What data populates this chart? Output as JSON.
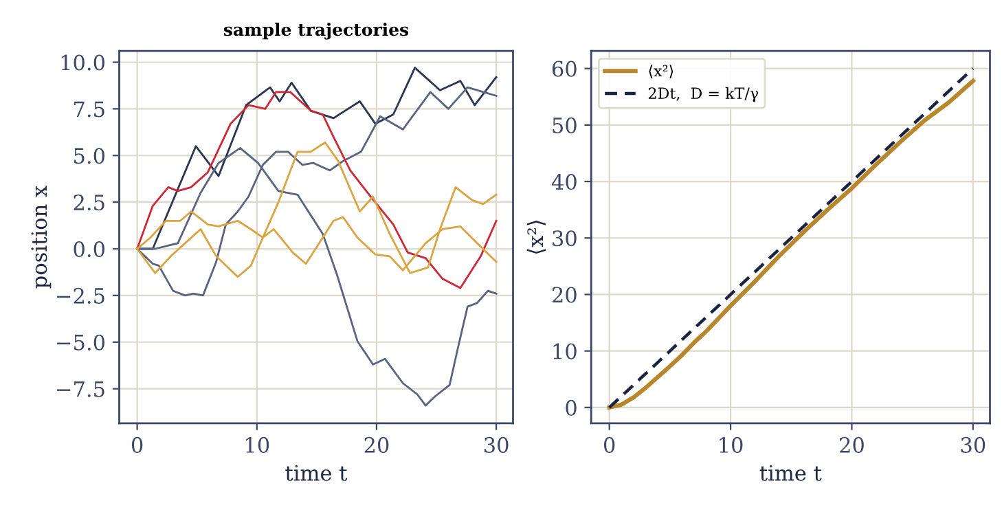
{
  "chart_data": [
    {
      "type": "line",
      "title": "sample trajectories",
      "xlabel": "time t",
      "ylabel": "position x",
      "xlim": [
        -1.5,
        31.4
      ],
      "ylim": [
        -9.35,
        10.6
      ],
      "xticks": [
        0,
        10,
        20,
        30
      ],
      "yticks": [
        {
          "value": -7.5,
          "label": "−7.5"
        },
        {
          "value": -5.0,
          "label": "−5.0"
        },
        {
          "value": -2.5,
          "label": "−2.5"
        },
        {
          "value": 0,
          "label": "0.0"
        },
        {
          "value": 2.5,
          "label": "2.5"
        },
        {
          "value": 5.0,
          "label": "5.0"
        },
        {
          "value": 7.5,
          "label": "7.5"
        },
        {
          "value": 10.0,
          "label": "10.0"
        }
      ],
      "grid": true,
      "legend": false,
      "series": [
        {
          "color": "#2b3550",
          "x": [
            0,
            1.3,
            4.9,
            6.8,
            9.1,
            11.1,
            11.9,
            12.9,
            14.5,
            16.4,
            18.6,
            19.9,
            21.4,
            23.2,
            25.3,
            27,
            28.2,
            30
          ],
          "values": [
            0,
            0,
            5.5,
            3.9,
            7.7,
            8.65,
            7.9,
            8.9,
            7.4,
            7.0,
            7.9,
            6.7,
            7.2,
            9.7,
            8.5,
            9.0,
            7.7,
            9.2
          ]
        },
        {
          "color": "#5a6480",
          "x": [
            0,
            1.3,
            1.8,
            3,
            4,
            4.7,
            5.5,
            6.6,
            7.4,
            8.4,
            9.3,
            10.5,
            11.6,
            12.6,
            13.8,
            14.7,
            16.1,
            17.2,
            18.7,
            20.3,
            22.2,
            24.5,
            26,
            27.6,
            30
          ],
          "values": [
            0,
            -0.8,
            -0.9,
            -2.25,
            -2.5,
            -2.4,
            -2.5,
            -0.7,
            1.3,
            2.0,
            2.8,
            4.5,
            5.2,
            5.2,
            4.5,
            4.6,
            4.2,
            4.7,
            5.2,
            7.1,
            6.4,
            8.4,
            7.5,
            8.65,
            8.2
          ]
        },
        {
          "color": "#5a6480",
          "x": [
            0,
            1.5,
            3.4,
            5.3,
            6.8,
            8.6,
            10.1,
            11.8,
            13.4,
            15.5,
            16.7,
            18.4,
            19.7,
            20.7,
            22.2,
            23.4,
            24.1,
            24.9,
            26.1,
            26.8,
            27.6,
            28.4,
            29.3,
            30
          ],
          "values": [
            0,
            0,
            0.3,
            3.0,
            4.6,
            5.4,
            4.6,
            3.1,
            2.9,
            0.8,
            -1.4,
            -4.95,
            -6.2,
            -5.9,
            -7.2,
            -7.8,
            -8.4,
            -7.9,
            -7.3,
            -5.3,
            -3.1,
            -2.9,
            -2.25,
            -2.4
          ]
        },
        {
          "color": "#cc2936",
          "x": [
            0,
            1.3,
            2.6,
            3.4,
            4.5,
            5.9,
            7.8,
            9.3,
            10.7,
            11.6,
            12.8,
            14.5,
            15.5,
            16.4,
            17.8,
            19.5,
            21.4,
            22.6,
            24.1,
            25.5,
            27,
            28.7,
            30
          ],
          "values": [
            0,
            2.3,
            3.3,
            3.1,
            3.3,
            4.1,
            6.7,
            7.7,
            7.5,
            8.4,
            8.4,
            7.4,
            7.2,
            6.0,
            4.2,
            2.8,
            1.3,
            -0.2,
            -0.5,
            -1.6,
            -2.1,
            -0.4,
            1.5
          ]
        },
        {
          "color": "#d9a441",
          "x": [
            0,
            1.1,
            2.4,
            3.6,
            4.5,
            5.9,
            6.8,
            8.4,
            9.5,
            10.5,
            11.8,
            13.4,
            14.5,
            15.7,
            16.8,
            18.6,
            19.7,
            21.1,
            22.8,
            24.3,
            25.3,
            26.6,
            28,
            28.9,
            30
          ],
          "values": [
            0,
            0.6,
            1.5,
            1.5,
            2.0,
            1.3,
            1.2,
            1.5,
            1.05,
            0.6,
            2.5,
            5.2,
            5.2,
            5.7,
            4.7,
            2.0,
            2.8,
            0.8,
            -1.3,
            -1.0,
            1.05,
            3.3,
            2.6,
            2.4,
            2.9
          ]
        },
        {
          "color": "#d9a441",
          "x": [
            0,
            1.5,
            2.8,
            4,
            5.3,
            6.6,
            8.4,
            9.5,
            10.5,
            11.4,
            13,
            14.1,
            15.5,
            16.4,
            17.2,
            18.4,
            19.9,
            21.1,
            22.2,
            24.1,
            25.5,
            27,
            28.4,
            30
          ],
          "values": [
            0,
            -1.3,
            -0.4,
            0.3,
            1.05,
            -0.4,
            -1.5,
            -0.9,
            0.6,
            1.05,
            -0.2,
            -0.8,
            0.6,
            1.5,
            1.7,
            0.6,
            -0.3,
            -0.4,
            -1.15,
            0.3,
            1.05,
            1.2,
            0.3,
            -0.7
          ]
        }
      ]
    },
    {
      "type": "line",
      "xlabel": "time t",
      "ylabel": "⟨x²⟩",
      "xlim": [
        -1.5,
        31.4
      ],
      "ylim": [
        -2.8,
        63.1
      ],
      "xticks": [
        0,
        10,
        20,
        30
      ],
      "yticks": [
        0,
        10,
        20,
        30,
        40,
        50,
        60
      ],
      "grid": true,
      "legend": "top left",
      "series": [
        {
          "name": "⟨x²⟩",
          "color": "#b8862b",
          "line_style": "solid",
          "x": [
            0,
            1,
            2,
            3,
            4,
            5,
            6,
            7,
            8,
            10,
            12,
            14,
            16,
            18,
            20,
            22,
            24,
            26,
            28,
            30
          ],
          "values": [
            0,
            0.5,
            1.8,
            3.5,
            5.4,
            7.3,
            9.3,
            11.5,
            13.5,
            18,
            22.3,
            26.8,
            31,
            35,
            38.8,
            43,
            47,
            50.8,
            54,
            57.8
          ]
        },
        {
          "name": "2Dt,  D = kT/γ",
          "color": "#1a2340",
          "line_style": "dashed",
          "x": [
            0,
            30
          ],
          "values": [
            0,
            60
          ]
        }
      ]
    }
  ]
}
